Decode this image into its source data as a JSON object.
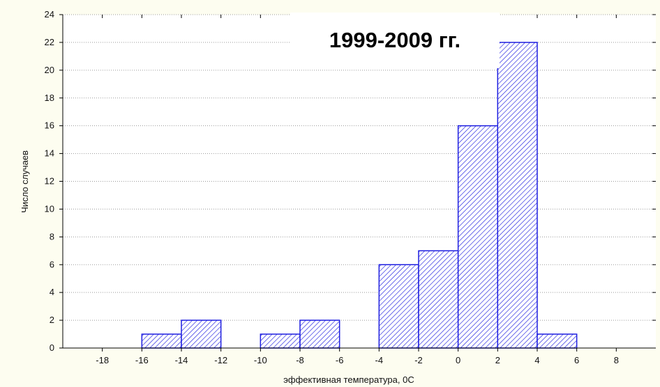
{
  "chart_data": {
    "type": "bar",
    "title": "1999-2009 гг.",
    "xlabel": "эффективная температура, 0С",
    "ylabel": "Число случаев",
    "xlim": [
      -20,
      10
    ],
    "ylim": [
      0,
      24
    ],
    "x_ticks": [
      "-18",
      "-16",
      "-14",
      "-12",
      "-10",
      "-8",
      "-6",
      "-4",
      "-2",
      "0",
      "2",
      "4",
      "6",
      "8"
    ],
    "y_ticks": [
      "0",
      "2",
      "4",
      "6",
      "8",
      "10",
      "12",
      "14",
      "16",
      "18",
      "20",
      "22",
      "24"
    ],
    "bin_width": 2,
    "bins": [
      {
        "from": -16,
        "to": -14,
        "value": 1
      },
      {
        "from": -14,
        "to": -12,
        "value": 2
      },
      {
        "from": -10,
        "to": -8,
        "value": 1
      },
      {
        "from": -8,
        "to": -6,
        "value": 2
      },
      {
        "from": -4,
        "to": -2,
        "value": 6
      },
      {
        "from": -2,
        "to": 0,
        "value": 7
      },
      {
        "from": 0,
        "to": 2,
        "value": 16
      },
      {
        "from": 2,
        "to": 4,
        "value": 22
      },
      {
        "from": 4,
        "to": 6,
        "value": 1
      }
    ],
    "grid": "horizontal dotted",
    "bar_color": "#1f1fe0",
    "fill_pattern": "diagonal hatch"
  }
}
